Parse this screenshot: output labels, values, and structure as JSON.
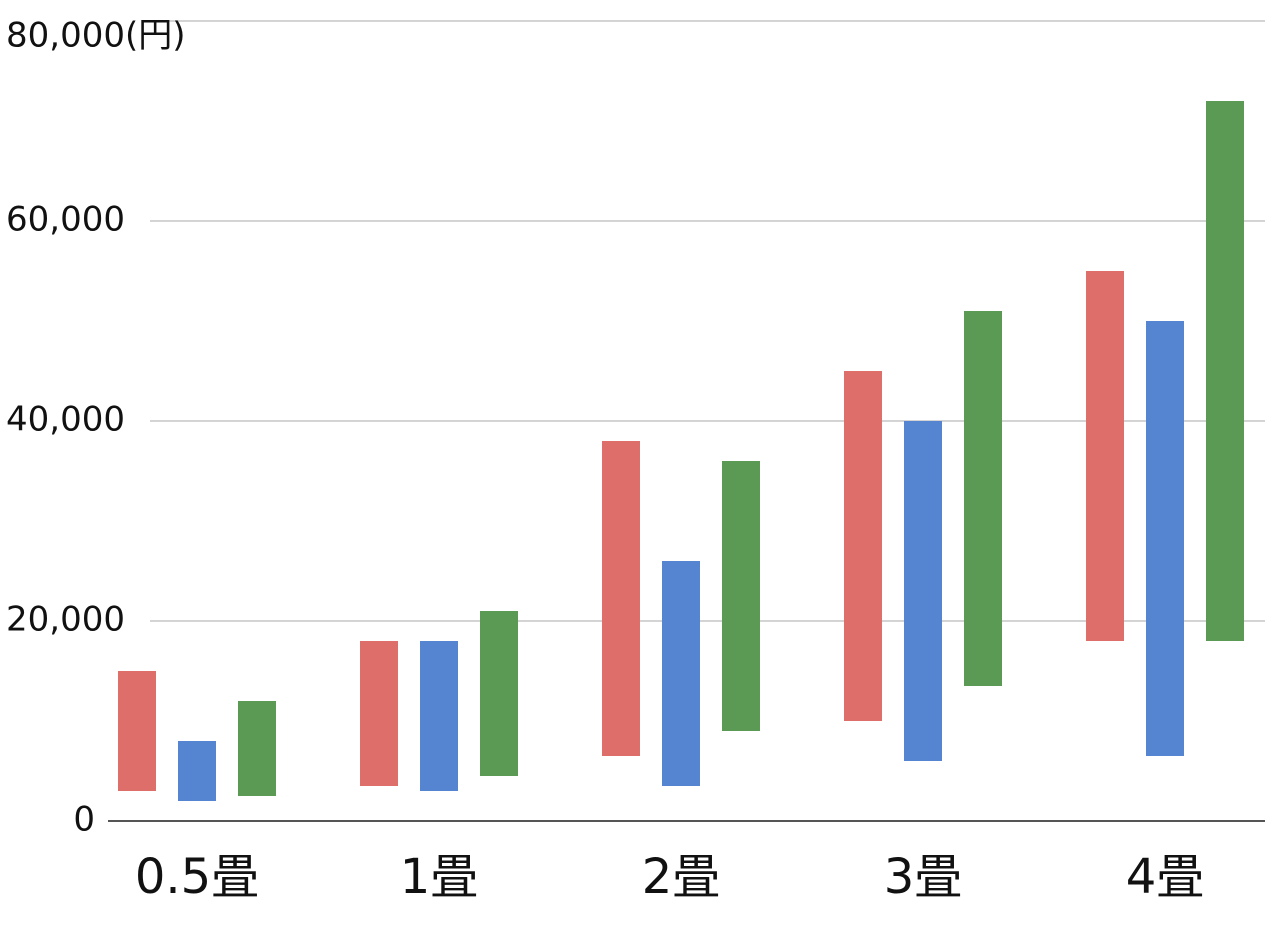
{
  "chart_data": {
    "type": "floating-bar",
    "categories": [
      "0.5畳",
      "1畳",
      "2畳",
      "3畳",
      "4畳"
    ],
    "series": [
      {
        "color": "#dd6e6a",
        "low": [
          3000,
          3500,
          6500,
          10000,
          18000
        ],
        "high": [
          15000,
          18000,
          38000,
          45000,
          55000
        ]
      },
      {
        "color": "#5585d0",
        "low": [
          2000,
          3000,
          3500,
          6000,
          6500
        ],
        "high": [
          8000,
          18000,
          26000,
          40000,
          50000
        ]
      },
      {
        "color": "#5b9a55",
        "low": [
          2500,
          4500,
          9000,
          13500,
          18000
        ],
        "high": [
          12000,
          21000,
          36000,
          51000,
          72000
        ]
      }
    ],
    "ylim": [
      0,
      80000
    ],
    "yticks": [
      0,
      {
        "value": 20000,
        "label": "20,000"
      },
      {
        "value": 40000,
        "label": "40,000"
      },
      {
        "value": 60000,
        "label": "60,000"
      },
      {
        "value": 80000,
        "label": "80,000(円)"
      }
    ],
    "grid": true
  }
}
